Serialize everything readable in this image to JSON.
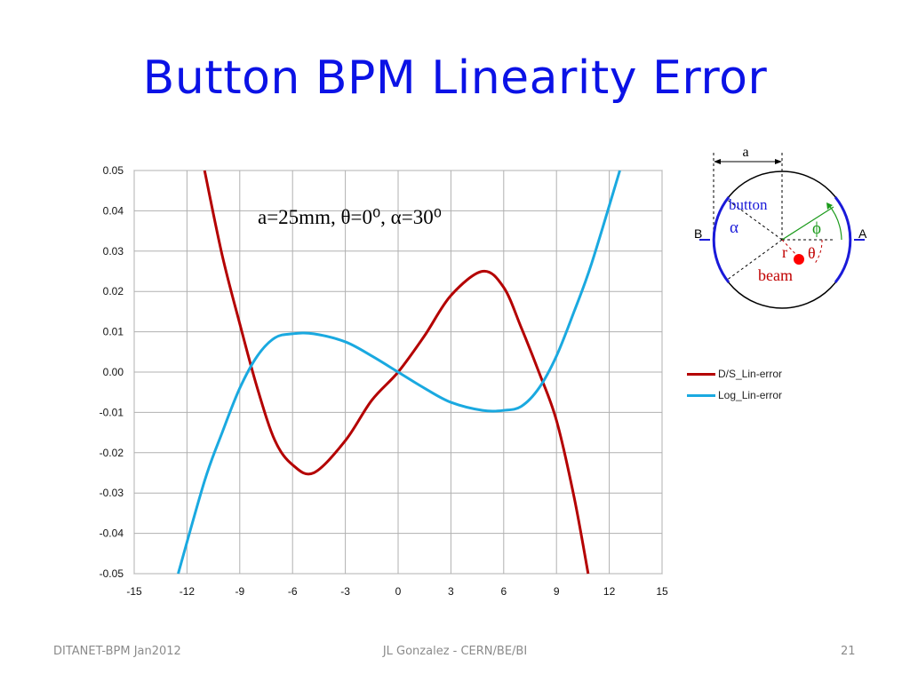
{
  "slide": {
    "title": "Button BPM Linearity Error"
  },
  "footer": {
    "left": "DITANET-BPM Jan2012",
    "center": "JL Gonzalez - CERN/BE/BI",
    "page_number": "21"
  },
  "annotation": {
    "text": "a=25mm, θ=0⁰, α=30⁰"
  },
  "colors": {
    "title": "#0b12e6",
    "ds_series": "#b40000",
    "log_series": "#1aa9e0"
  },
  "chart_data": {
    "type": "line",
    "xlim": [
      -15,
      15
    ],
    "ylim": [
      -0.05,
      0.05
    ],
    "x_ticks": [
      "-15",
      "-12",
      "-9",
      "-6",
      "-3",
      "0",
      "3",
      "6",
      "9",
      "12",
      "15"
    ],
    "y_ticks": [
      "0.05",
      "0.04",
      "0.03",
      "0.02",
      "0.01",
      "0.00",
      "-0.01",
      "-0.02",
      "-0.03",
      "-0.04",
      "-0.05"
    ],
    "grid": true,
    "legend_position": "right",
    "series": [
      {
        "name": "D/S_Lin-error",
        "color": "#b40000",
        "x": [
          -11.0,
          -10.0,
          -9.0,
          -8.0,
          -7.0,
          -6.0,
          -4.8,
          -3.0,
          -1.5,
          0,
          1.5,
          3.0,
          4.8,
          6.0,
          7.0,
          8.0,
          9.0,
          10.0,
          10.8
        ],
        "y": [
          0.05,
          0.029,
          0.012,
          -0.004,
          -0.017,
          -0.023,
          -0.025,
          -0.017,
          -0.007,
          0.0,
          0.009,
          0.019,
          0.025,
          0.021,
          0.011,
          0.0,
          -0.012,
          -0.031,
          -0.05
        ]
      },
      {
        "name": "Log_Lin-error",
        "color": "#1aa9e0",
        "x": [
          -12.5,
          -11.0,
          -10.0,
          -9.0,
          -8.0,
          -7.0,
          -6.0,
          -4.8,
          -3.0,
          -1.5,
          0,
          1.5,
          3.0,
          4.8,
          6.0,
          7.0,
          8.0,
          9.0,
          10.0,
          11.0,
          12.6
        ],
        "y": [
          -0.05,
          -0.027,
          -0.015,
          -0.004,
          0.004,
          0.0085,
          0.0095,
          0.0095,
          0.0075,
          0.004,
          0.0,
          -0.004,
          -0.0075,
          -0.0095,
          -0.0095,
          -0.0085,
          -0.004,
          0.004,
          0.015,
          0.027,
          0.05
        ]
      }
    ]
  },
  "diagram": {
    "dimension_label": "a",
    "button_label": "button",
    "alpha_symbol": "α",
    "phi_symbol": "ϕ",
    "r_label": "r",
    "theta_symbol": "θ",
    "beam_label": "beam",
    "electrode_b": "B",
    "electrode_a": "A"
  }
}
